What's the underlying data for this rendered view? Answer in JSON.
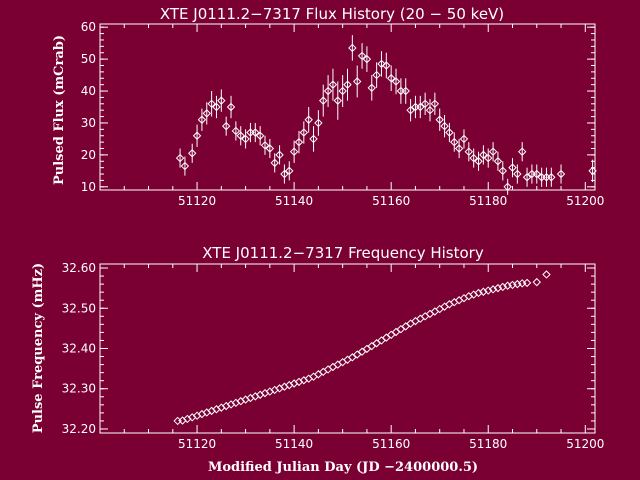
{
  "chart_data": [
    {
      "type": "scatter",
      "title": "XTE J0111.2−7317 Flux History (20 − 50 keV)",
      "xlabel": "",
      "ylabel": "Pulsed Flux (mCrab)",
      "xlim": [
        51100,
        51202
      ],
      "ylim": [
        9,
        61
      ],
      "xticks": [
        51120,
        51140,
        51160,
        51180,
        51200
      ],
      "yticks": [
        10,
        20,
        30,
        40,
        50,
        60
      ],
      "marker": "diamond",
      "error_bars": true,
      "grid": false,
      "points": [
        [
          51116.5,
          19,
          3
        ],
        [
          51117.5,
          16.5,
          3
        ],
        [
          51119,
          20.5,
          3
        ],
        [
          51120,
          26,
          3.5
        ],
        [
          51121,
          31,
          3.5
        ],
        [
          51122,
          33,
          3.5
        ],
        [
          51123,
          36,
          4
        ],
        [
          51124,
          35,
          3.5
        ],
        [
          51125,
          37,
          3.5
        ],
        [
          51126,
          29,
          3
        ],
        [
          51127,
          35,
          3.5
        ],
        [
          51128,
          27.5,
          3
        ],
        [
          51129,
          26,
          3
        ],
        [
          51130,
          25,
          3
        ],
        [
          51131,
          27,
          3
        ],
        [
          51132,
          27,
          3
        ],
        [
          51133,
          26,
          3
        ],
        [
          51134,
          23,
          3
        ],
        [
          51135,
          22,
          3
        ],
        [
          51136,
          17.5,
          3
        ],
        [
          51137,
          20,
          3
        ],
        [
          51138,
          14,
          3
        ],
        [
          51139,
          15,
          3
        ],
        [
          51140,
          21,
          3.5
        ],
        [
          51141,
          24,
          3.5
        ],
        [
          51142,
          27,
          3.5
        ],
        [
          51143,
          31,
          4
        ],
        [
          51144,
          25,
          4
        ],
        [
          51145,
          30,
          4
        ],
        [
          51146,
          37,
          5
        ],
        [
          51147,
          40,
          5
        ],
        [
          51148,
          42,
          5
        ],
        [
          51149,
          37,
          6
        ],
        [
          51150,
          40,
          5
        ],
        [
          51151,
          42,
          5
        ],
        [
          51152,
          53.5,
          4
        ],
        [
          51153,
          43,
          5
        ],
        [
          51154,
          51,
          4
        ],
        [
          51155,
          50,
          4
        ],
        [
          51156,
          41,
          4
        ],
        [
          51157,
          45,
          4
        ],
        [
          51158,
          48.5,
          4
        ],
        [
          51159,
          48,
          4
        ],
        [
          51160,
          44,
          4
        ],
        [
          51161,
          43,
          4
        ],
        [
          51162,
          40,
          4
        ],
        [
          51163,
          40,
          4
        ],
        [
          51164,
          34,
          3.5
        ],
        [
          51165,
          35,
          3.5
        ],
        [
          51166,
          35,
          3.5
        ],
        [
          51167,
          36,
          3.5
        ],
        [
          51168,
          34,
          3.5
        ],
        [
          51169,
          36,
          3.5
        ],
        [
          51170,
          31,
          3.5
        ],
        [
          51171,
          29,
          3.5
        ],
        [
          51172,
          27,
          3
        ],
        [
          51173,
          24,
          3
        ],
        [
          51174,
          22,
          3
        ],
        [
          51175,
          25,
          3
        ],
        [
          51176,
          21,
          3
        ],
        [
          51177,
          19,
          3
        ],
        [
          51178,
          18,
          3
        ],
        [
          51179,
          20,
          3
        ],
        [
          51180,
          19,
          3
        ],
        [
          51181,
          21,
          3
        ],
        [
          51182,
          18,
          3
        ],
        [
          51183,
          15,
          3
        ],
        [
          51184,
          10,
          2.5
        ],
        [
          51185,
          16,
          3
        ],
        [
          51186,
          14,
          3
        ],
        [
          51187,
          21,
          3
        ],
        [
          51188,
          13,
          3
        ],
        [
          51189,
          14,
          3
        ],
        [
          51190,
          14,
          3
        ],
        [
          51191,
          13,
          3
        ],
        [
          51192,
          13,
          3
        ],
        [
          51193,
          13,
          3
        ],
        [
          51195,
          14,
          3
        ],
        [
          51201.5,
          15,
          3.5
        ]
      ]
    },
    {
      "type": "scatter",
      "title": "XTE J0111.2−7317 Frequency History",
      "xlabel": "Modified Julian Day (JD −2400000.5)",
      "ylabel": "Pulse Frequency (mHz)",
      "xlim": [
        51100,
        51202
      ],
      "ylim": [
        32.19,
        32.61
      ],
      "xticks": [
        51120,
        51140,
        51160,
        51180,
        51200
      ],
      "yticks": [
        32.2,
        32.3,
        32.4,
        32.5,
        32.6
      ],
      "ytick_labels": [
        "32.20",
        "32.30",
        "32.40",
        "32.50",
        "32.60"
      ],
      "marker": "diamond",
      "grid": false,
      "points": [
        [
          51116,
          32.22
        ],
        [
          51117,
          32.221
        ],
        [
          51118,
          32.225
        ],
        [
          51119,
          32.229
        ],
        [
          51120,
          32.233
        ],
        [
          51121,
          32.237
        ],
        [
          51122,
          32.241
        ],
        [
          51123,
          32.245
        ],
        [
          51124,
          32.249
        ],
        [
          51125,
          32.253
        ],
        [
          51126,
          32.257
        ],
        [
          51127,
          32.261
        ],
        [
          51128,
          32.265
        ],
        [
          51129,
          32.269
        ],
        [
          51130,
          32.273
        ],
        [
          51131,
          32.277
        ],
        [
          51132,
          32.281
        ],
        [
          51133,
          32.285
        ],
        [
          51134,
          32.289
        ],
        [
          51135,
          32.293
        ],
        [
          51136,
          32.297
        ],
        [
          51137,
          32.301
        ],
        [
          51138,
          32.305
        ],
        [
          51139,
          32.309
        ],
        [
          51140,
          32.313
        ],
        [
          51141,
          32.317
        ],
        [
          51142,
          32.321
        ],
        [
          51143,
          32.325
        ],
        [
          51144,
          32.33
        ],
        [
          51145,
          32.336
        ],
        [
          51146,
          32.342
        ],
        [
          51147,
          32.348
        ],
        [
          51148,
          32.354
        ],
        [
          51149,
          32.36
        ],
        [
          51150,
          32.366
        ],
        [
          51151,
          32.372
        ],
        [
          51152,
          32.378
        ],
        [
          51153,
          32.385
        ],
        [
          51154,
          32.392
        ],
        [
          51155,
          32.399
        ],
        [
          51156,
          32.406
        ],
        [
          51157,
          32.413
        ],
        [
          51158,
          32.42
        ],
        [
          51159,
          32.427
        ],
        [
          51160,
          32.434
        ],
        [
          51161,
          32.441
        ],
        [
          51162,
          32.448
        ],
        [
          51163,
          32.455
        ],
        [
          51164,
          32.462
        ],
        [
          51165,
          32.468
        ],
        [
          51166,
          32.474
        ],
        [
          51167,
          32.48
        ],
        [
          51168,
          32.486
        ],
        [
          51169,
          32.492
        ],
        [
          51170,
          32.498
        ],
        [
          51171,
          32.504
        ],
        [
          51172,
          32.51
        ],
        [
          51173,
          32.515
        ],
        [
          51174,
          32.52
        ],
        [
          51175,
          32.525
        ],
        [
          51176,
          32.53
        ],
        [
          51177,
          32.534
        ],
        [
          51178,
          32.538
        ],
        [
          51179,
          32.541
        ],
        [
          51180,
          32.544
        ],
        [
          51181,
          32.547
        ],
        [
          51182,
          32.55
        ],
        [
          51183,
          32.553
        ],
        [
          51184,
          32.556
        ],
        [
          51185,
          32.558
        ],
        [
          51186,
          32.56
        ],
        [
          51187,
          32.562
        ],
        [
          51188,
          32.563
        ],
        [
          51190,
          32.565
        ],
        [
          51192,
          32.584
        ]
      ]
    }
  ]
}
